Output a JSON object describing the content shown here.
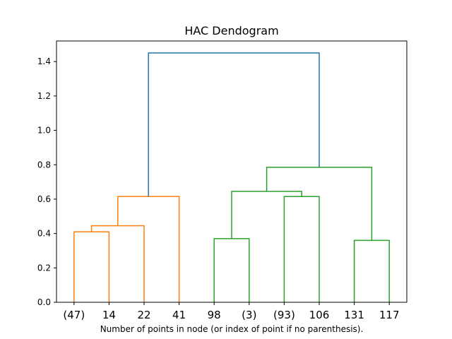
{
  "chart_data": {
    "type": "dendrogram",
    "title": "HAC Dendogram",
    "xlabel": "Number of points in node (or index of point if no parenthesis).",
    "ylabel": "",
    "ylim": [
      0.0,
      1.52
    ],
    "yticks": [
      0.0,
      0.2,
      0.4,
      0.6,
      0.8,
      1.0,
      1.2,
      1.4
    ],
    "ytick_labels": [
      "0.0",
      "0.2",
      "0.4",
      "0.6",
      "0.8",
      "1.0",
      "1.2",
      "1.4"
    ],
    "leaves": [
      "(47)",
      "14",
      "22",
      "41",
      "98",
      "(3)",
      "(93)",
      "106",
      "131",
      "117"
    ],
    "colors": {
      "cluster_a": "#ff7f0e",
      "cluster_b": "#2ca02c",
      "root": "#1f77b4"
    },
    "merges": [
      {
        "left": 0,
        "right": 1,
        "height": 0.41,
        "color": "cluster_a"
      },
      {
        "left": "m0",
        "right": 2,
        "height": 0.445,
        "color": "cluster_a"
      },
      {
        "left": "m1",
        "right": 3,
        "height": 0.615,
        "color": "cluster_a"
      },
      {
        "left": 4,
        "right": 5,
        "height": 0.37,
        "color": "cluster_b"
      },
      {
        "left": 6,
        "right": 7,
        "height": 0.615,
        "color": "cluster_b"
      },
      {
        "left": "m3",
        "right": "m4",
        "height": 0.645,
        "color": "cluster_b"
      },
      {
        "left": 8,
        "right": 9,
        "height": 0.36,
        "color": "cluster_b"
      },
      {
        "left": "m5",
        "right": "m6",
        "height": 0.785,
        "color": "cluster_b"
      },
      {
        "left": "m2",
        "right": "m7",
        "height": 1.45,
        "color": "root"
      }
    ]
  }
}
